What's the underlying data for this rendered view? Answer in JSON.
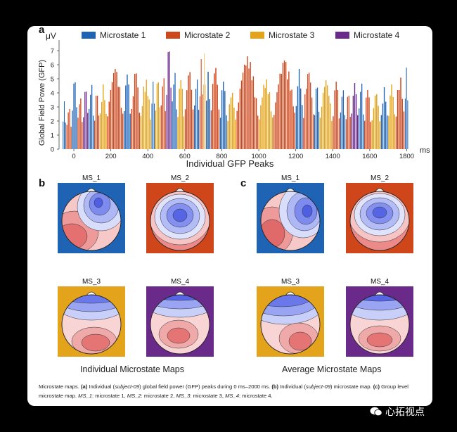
{
  "panels": {
    "a": "a",
    "b": "b",
    "c": "c"
  },
  "legend": [
    {
      "label": "Microstate 1",
      "color": "#1f63b5"
    },
    {
      "label": "Microstate 2",
      "color": "#d0461b"
    },
    {
      "label": "Microstate 3",
      "color": "#e3a31b"
    },
    {
      "label": "Microstate 4",
      "color": "#6a2a8a"
    }
  ],
  "chart_data": {
    "type": "bar",
    "title": "",
    "unit_label": "μV",
    "ylabel": "Global Field Powe (GFP)",
    "xlabel": "Individual GFP Peaks",
    "x_unit": "ms",
    "xlim": [
      -80,
      1840
    ],
    "ylim": [
      0,
      7.5
    ],
    "x_ticks": [
      0,
      200,
      400,
      600,
      800,
      1000,
      1200,
      1400,
      1600,
      1800
    ],
    "y_ticks": [
      0,
      1,
      2,
      3,
      4,
      5,
      6,
      7
    ],
    "segments": [
      {
        "state": 1,
        "start": -60,
        "end": -40,
        "peak": 3.4
      },
      {
        "state": 2,
        "start": -40,
        "end": -10,
        "peak": 3.0
      },
      {
        "state": 1,
        "start": -10,
        "end": 20,
        "peak": 5.0
      },
      {
        "state": 2,
        "start": 20,
        "end": 50,
        "peak": 3.8
      },
      {
        "state": 4,
        "start": 50,
        "end": 80,
        "peak": 4.3
      },
      {
        "state": 1,
        "start": 80,
        "end": 110,
        "peak": 4.8
      },
      {
        "state": 2,
        "start": 110,
        "end": 140,
        "peak": 4.0
      },
      {
        "state": 3,
        "start": 140,
        "end": 180,
        "peak": 4.6
      },
      {
        "state": 2,
        "start": 180,
        "end": 270,
        "peak": 5.7
      },
      {
        "state": 1,
        "start": 270,
        "end": 310,
        "peak": 5.3
      },
      {
        "state": 2,
        "start": 310,
        "end": 360,
        "peak": 5.5
      },
      {
        "state": 3,
        "start": 360,
        "end": 420,
        "peak": 5.0
      },
      {
        "state": 1,
        "start": 420,
        "end": 440,
        "peak": 4.8
      },
      {
        "state": 3,
        "start": 440,
        "end": 470,
        "peak": 5.0
      },
      {
        "state": 2,
        "start": 470,
        "end": 500,
        "peak": 5.3
      },
      {
        "state": 4,
        "start": 500,
        "end": 530,
        "peak": 7.3
      },
      {
        "state": 1,
        "start": 530,
        "end": 560,
        "peak": 5.7
      },
      {
        "state": 3,
        "start": 560,
        "end": 600,
        "peak": 4.9
      },
      {
        "state": 2,
        "start": 600,
        "end": 650,
        "peak": 5.6
      },
      {
        "state": 1,
        "start": 650,
        "end": 680,
        "peak": 5.2
      },
      {
        "state": 2,
        "start": 680,
        "end": 700,
        "peak": 6.4
      },
      {
        "state": 3,
        "start": 700,
        "end": 715,
        "peak": 6.8
      },
      {
        "state": 1,
        "start": 715,
        "end": 740,
        "peak": 5.5
      },
      {
        "state": 2,
        "start": 740,
        "end": 790,
        "peak": 5.9
      },
      {
        "state": 1,
        "start": 790,
        "end": 830,
        "peak": 4.8
      },
      {
        "state": 3,
        "start": 830,
        "end": 880,
        "peak": 4.1
      },
      {
        "state": 2,
        "start": 880,
        "end": 1000,
        "peak": 6.6
      },
      {
        "state": 3,
        "start": 1000,
        "end": 1080,
        "peak": 5.0
      },
      {
        "state": 2,
        "start": 1080,
        "end": 1200,
        "peak": 6.3
      },
      {
        "state": 1,
        "start": 1200,
        "end": 1240,
        "peak": 5.7
      },
      {
        "state": 2,
        "start": 1240,
        "end": 1300,
        "peak": 5.5
      },
      {
        "state": 1,
        "start": 1300,
        "end": 1330,
        "peak": 4.6
      },
      {
        "state": 3,
        "start": 1330,
        "end": 1400,
        "peak": 4.9
      },
      {
        "state": 2,
        "start": 1400,
        "end": 1440,
        "peak": 4.8
      },
      {
        "state": 1,
        "start": 1440,
        "end": 1470,
        "peak": 4.4
      },
      {
        "state": 2,
        "start": 1470,
        "end": 1500,
        "peak": 4.0
      },
      {
        "state": 4,
        "start": 1500,
        "end": 1540,
        "peak": 4.7
      },
      {
        "state": 1,
        "start": 1540,
        "end": 1570,
        "peak": 4.9
      },
      {
        "state": 2,
        "start": 1570,
        "end": 1610,
        "peak": 4.2
      },
      {
        "state": 3,
        "start": 1610,
        "end": 1660,
        "peak": 4.0
      },
      {
        "state": 1,
        "start": 1660,
        "end": 1700,
        "peak": 4.4
      },
      {
        "state": 3,
        "start": 1700,
        "end": 1740,
        "peak": 4.6
      },
      {
        "state": 2,
        "start": 1740,
        "end": 1790,
        "peak": 5.2
      },
      {
        "state": 1,
        "start": 1790,
        "end": 1810,
        "peak": 5.8
      }
    ]
  },
  "maps": {
    "individual_caption": "Individual Microstate Maps",
    "average_caption": "Average Microstate Maps",
    "individual": [
      {
        "label": "MS_1",
        "bg": "#1f63b5"
      },
      {
        "label": "MS_2",
        "bg": "#d0461b"
      },
      {
        "label": "MS_3",
        "bg": "#e3a31b"
      },
      {
        "label": "MS_4",
        "bg": "#6a2a8a"
      }
    ],
    "average": [
      {
        "label": "MS_1",
        "bg": "#1f63b5"
      },
      {
        "label": "MS_2",
        "bg": "#d0461b"
      },
      {
        "label": "MS_3",
        "bg": "#e3a31b"
      },
      {
        "label": "MS_4",
        "bg": "#6a2a8a"
      }
    ]
  },
  "caption": {
    "p1": "Microstate maps. ",
    "a_tag": "(a)",
    "p2": " Individual (",
    "subj1": "subject-09",
    "p3": ") global field power (GFP) peaks during 0 ms–2000 ms. ",
    "b_tag": "(b)",
    "p4": " Individual (",
    "subj2": "subject-09",
    "p5": ") microstate map. ",
    "c_tag": "(c)",
    "p6": " Group level microstate map. ",
    "ms1": "MS_1",
    "p7": ": microstate 1, ",
    "ms2": "MS_2",
    "p8": ": microstate 2, ",
    "ms3": "MS_3",
    "p9": ": microstate 3, ",
    "ms4": "MS_4",
    "p10": ": microstate 4."
  },
  "watermark": "心拓视点"
}
